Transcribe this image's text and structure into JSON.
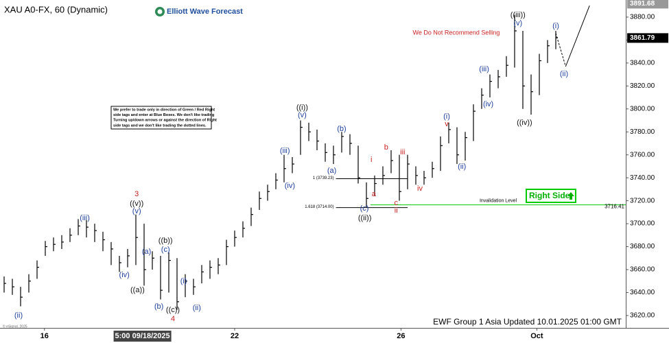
{
  "chart_data": {
    "type": "hlc",
    "title": "XAU A0-FX, 60 (Dynamic)",
    "logo": "Elliott Wave Forecast",
    "warning": "We Do Not Recommend Selling",
    "note_lines": [
      "We prefer to trade only in direction of Green / Red Right",
      "side tags and enter at Blue Boxes. We don't like trading",
      "Turning up/down arrows or against the direction of Right",
      "side tags and we don't like trading the dotted lines."
    ],
    "footer": "EWF Group 1 Asia Updated 10.01.2025 01:00 GMT",
    "copyright": "© eSignal, 2025",
    "right_side": "Right Side",
    "color": "#000000",
    "high": [
      3654,
      3652,
      3645,
      3656,
      3668,
      3685,
      3688,
      3690,
      3696,
      3704,
      3703,
      3700,
      3693,
      3684,
      3672,
      3678,
      3708,
      3700,
      3676,
      3672,
      3675,
      3670,
      3656,
      3652,
      3664,
      3668,
      3670,
      3686,
      3694,
      3702,
      3714,
      3728,
      3734,
      3744,
      3760,
      3758,
      3790,
      3788,
      3782,
      3770,
      3768,
      3780,
      3778,
      3768,
      3736,
      3742,
      3750,
      3764,
      3760,
      3760,
      3750,
      3746,
      3754,
      3776,
      3788,
      3784,
      3780,
      3804,
      3818,
      3830,
      3834,
      3846,
      3882,
      3868,
      3830,
      3848,
      3860,
      3868
    ],
    "low": [
      3640,
      3638,
      3628,
      3640,
      3652,
      3672,
      3676,
      3678,
      3684,
      3690,
      3688,
      3684,
      3676,
      3664,
      3658,
      3662,
      3664,
      3646,
      3660,
      3634,
      3640,
      3625,
      3636,
      3638,
      3648,
      3652,
      3656,
      3664,
      3680,
      3688,
      3698,
      3712,
      3720,
      3730,
      3736,
      3744,
      3760,
      3772,
      3764,
      3754,
      3752,
      3762,
      3760,
      3735,
      3714,
      3724,
      3734,
      3744,
      3720,
      3730,
      3734,
      3734,
      3740,
      3746,
      3770,
      3752,
      3755,
      3772,
      3800,
      3810,
      3818,
      3828,
      3836,
      3800,
      3795,
      3812,
      3840,
      3852
    ],
    "close": [
      3648,
      3645,
      3636,
      3650,
      3662,
      3680,
      3682,
      3684,
      3690,
      3698,
      3697,
      3694,
      3686,
      3678,
      3666,
      3672,
      3688,
      3660,
      3670,
      3642,
      3668,
      3632,
      3650,
      3645,
      3658,
      3662,
      3664,
      3680,
      3688,
      3696,
      3708,
      3722,
      3728,
      3738,
      3748,
      3752,
      3784,
      3780,
      3772,
      3762,
      3760,
      3776,
      3770,
      3740,
      3722,
      3735,
      3742,
      3755,
      3728,
      3752,
      3742,
      3740,
      3748,
      3768,
      3782,
      3760,
      3775,
      3798,
      3812,
      3824,
      3828,
      3838,
      3868,
      3820,
      3815,
      3842,
      3855,
      3862
    ],
    "xlim": [
      -0.5,
      75.5
    ],
    "ylim": [
      3609.2,
      3894.9
    ],
    "xticks": [
      {
        "value": 4.9,
        "label": "16"
      },
      {
        "value": 28,
        "label": "22"
      },
      {
        "value": 48.2,
        "label": "26"
      },
      {
        "value": 64.7,
        "label": "Oct"
      }
    ],
    "cursor_label": {
      "value": 16.8,
      "label": "5:00 09/18/2025"
    },
    "yticks": [
      {
        "value": 3620,
        "label": "3620.00"
      },
      {
        "value": 3640,
        "label": "3640.00"
      },
      {
        "value": 3660,
        "label": "3660.00"
      },
      {
        "value": 3680,
        "label": "3680.00"
      },
      {
        "value": 3700,
        "label": "3700.00"
      },
      {
        "value": 3720,
        "label": "3720.00"
      },
      {
        "value": 3740,
        "label": "3740.00"
      },
      {
        "value": 3760,
        "label": "3760.00"
      },
      {
        "value": 3780,
        "label": "3780.00"
      },
      {
        "value": 3800,
        "label": "3800.00"
      },
      {
        "value": 3820,
        "label": "3820.00"
      },
      {
        "value": 3840,
        "label": "3840.00"
      },
      {
        "value": 3860,
        "label": "3860.00"
      },
      {
        "value": 3880,
        "label": "3880.00"
      }
    ],
    "high_price": 3891.68,
    "last_price": 3861.79,
    "fib_levels": [
      {
        "label": "1 (3739.23)",
        "value": 3739.23,
        "x": [
          40.3,
          49
        ]
      },
      {
        "label": "1.618 (3714.00)",
        "value": 3714.0,
        "x": [
          40.3,
          49
        ]
      }
    ],
    "invalidation": {
      "label": "Invalidation Level",
      "value": 3716.41,
      "x": [
        44.5,
        75.5
      ],
      "color": "#00cc00"
    },
    "projection": {
      "x": [
        67,
        68.2,
        71.1
      ],
      "y": [
        3866,
        3837,
        3890
      ]
    },
    "annotations": [
      {
        "text": "(ii)",
        "x": 1.75,
        "y": 3620,
        "color": "#1f3f9f"
      },
      {
        "text": "(iii)",
        "x": 9.8,
        "y": 3704.9,
        "color": "#1f3f9f"
      },
      {
        "text": "(iv)",
        "x": 14.6,
        "y": 3655.3,
        "color": "#1f3f9f"
      },
      {
        "text": "3",
        "x": 16.1,
        "y": 3725.8,
        "color": "#cc1f1f"
      },
      {
        "text": "((v))",
        "x": 16.1,
        "y": 3717.4,
        "color": "#111111"
      },
      {
        "text": "(v)",
        "x": 16.1,
        "y": 3710.8,
        "color": "#1f3f9f"
      },
      {
        "text": "(a)",
        "x": 17.3,
        "y": 3675.6,
        "color": "#1f3f9f"
      },
      {
        "text": "((a))",
        "x": 16.2,
        "y": 3642.1,
        "color": "#111111"
      },
      {
        "text": "((b))",
        "x": 19.6,
        "y": 3685.1,
        "color": "#111111"
      },
      {
        "text": "(c)",
        "x": 19.6,
        "y": 3677.4,
        "color": "#1f3f9f"
      },
      {
        "text": "(b)",
        "x": 18.8,
        "y": 3627.8,
        "color": "#1f3f9f"
      },
      {
        "text": "((c))",
        "x": 20.5,
        "y": 3624.8,
        "color": "#111111"
      },
      {
        "text": "4",
        "x": 20.5,
        "y": 3617,
        "color": "#cc1f1f"
      },
      {
        "text": "(i)",
        "x": 21.8,
        "y": 3649.9,
        "color": "#1f3f9f"
      },
      {
        "text": "(ii)",
        "x": 23.4,
        "y": 3626.6,
        "color": "#1f3f9f"
      },
      {
        "text": "(iii)",
        "x": 34.1,
        "y": 3763.4,
        "color": "#1f3f9f"
      },
      {
        "text": "(iv)",
        "x": 34.7,
        "y": 3733,
        "color": "#1f3f9f"
      },
      {
        "text": "((i))",
        "x": 36.2,
        "y": 3801.1,
        "color": "#111111"
      },
      {
        "text": "(v)",
        "x": 36.2,
        "y": 3794.5,
        "color": "#1f3f9f"
      },
      {
        "text": "(b)",
        "x": 41,
        "y": 3782.6,
        "color": "#1f3f9f"
      },
      {
        "text": "(a)",
        "x": 39.8,
        "y": 3746.1,
        "color": "#1f3f9f"
      },
      {
        "text": "i",
        "x": 44.6,
        "y": 3755.7,
        "color": "#cc1f1f"
      },
      {
        "text": "a",
        "x": 44.9,
        "y": 3725.8,
        "color": "#cc1f1f"
      },
      {
        "text": "b",
        "x": 46.4,
        "y": 3766.4,
        "color": "#cc1f1f"
      },
      {
        "text": "iii",
        "x": 48.4,
        "y": 3762.2,
        "color": "#cc1f1f"
      },
      {
        "text": "iv",
        "x": 50.5,
        "y": 3730.6,
        "color": "#cc1f1f"
      },
      {
        "text": "c",
        "x": 47.6,
        "y": 3718,
        "color": "#cc1f1f"
      },
      {
        "text": "ii",
        "x": 47.6,
        "y": 3711.4,
        "color": "#cc1f1f"
      },
      {
        "text": "(c)",
        "x": 43.75,
        "y": 3713.2,
        "color": "#1f3f9f"
      },
      {
        "text": "((ii))",
        "x": 43.8,
        "y": 3704.9,
        "color": "#111111"
      },
      {
        "text": "(i)",
        "x": 53.75,
        "y": 3793.3,
        "color": "#1f3f9f"
      },
      {
        "text": "v",
        "x": 53.75,
        "y": 3786.8,
        "color": "#cc1f1f"
      },
      {
        "text": "(ii)",
        "x": 55.6,
        "y": 3749.7,
        "color": "#1f3f9f"
      },
      {
        "text": "(iii)",
        "x": 58.3,
        "y": 3834.6,
        "color": "#1f3f9f"
      },
      {
        "text": "(iv)",
        "x": 58.8,
        "y": 3804.1,
        "color": "#1f3f9f"
      },
      {
        "text": "((iii))",
        "x": 62.4,
        "y": 3881.8,
        "color": "#111111"
      },
      {
        "text": "(v)",
        "x": 62.4,
        "y": 3874.6,
        "color": "#1f3f9f"
      },
      {
        "text": "((iv))",
        "x": 63.2,
        "y": 3788,
        "color": "#111111"
      },
      {
        "text": "(i)",
        "x": 67,
        "y": 3872.2,
        "color": "#1f3f9f"
      },
      {
        "text": "(ii)",
        "x": 68,
        "y": 3830.4,
        "color": "#1f3f9f"
      }
    ]
  }
}
